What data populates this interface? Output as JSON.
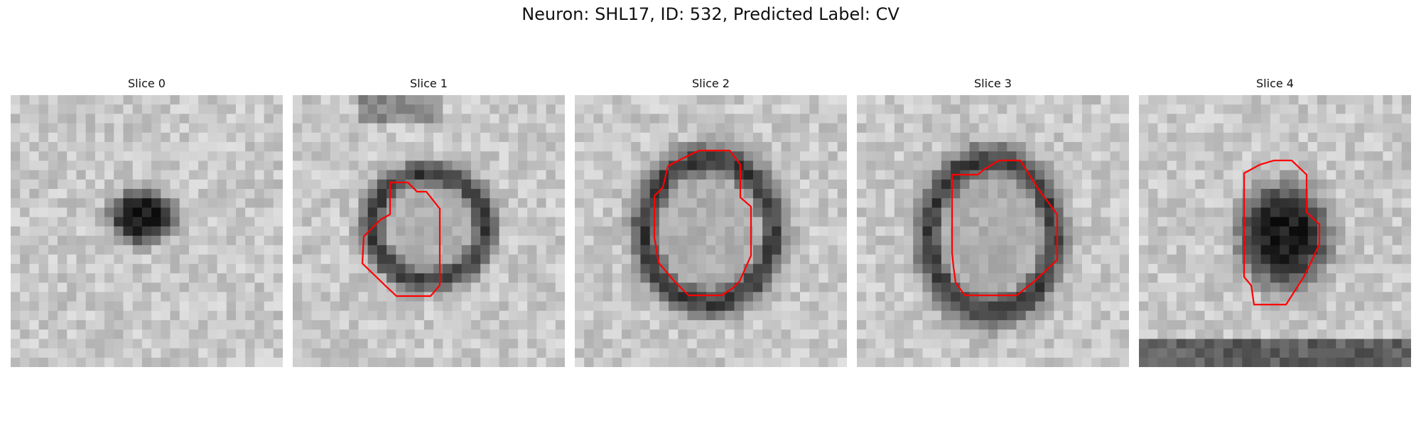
{
  "figure": {
    "title": "Neuron: SHL17, ID: 532, Predicted Label: CV"
  },
  "panels": [
    {
      "title": "Slice 0",
      "shape": "dark-blob",
      "outline": false
    },
    {
      "title": "Slice 1",
      "shape": "ring",
      "outline": true
    },
    {
      "title": "Slice 2",
      "shape": "ring",
      "outline": true
    },
    {
      "title": "Slice 3",
      "shape": "ring",
      "outline": true
    },
    {
      "title": "Slice 4",
      "shape": "dark-blob",
      "outline": true
    }
  ],
  "colors": {
    "outline": "#ff0000",
    "background": "#ffffff",
    "text": "#111111"
  },
  "colormap": "grayscale"
}
